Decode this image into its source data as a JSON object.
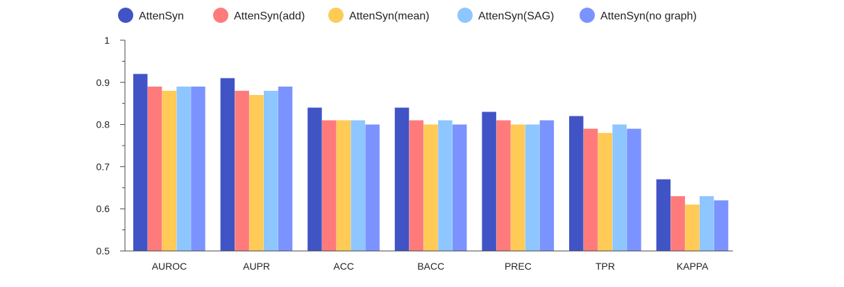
{
  "chart_data": {
    "type": "bar",
    "title": "",
    "xlabel": "",
    "ylabel": "",
    "ylim": [
      0.5,
      1.0
    ],
    "yticks": [
      "0.5",
      "0.6",
      "0.7",
      "0.8",
      "0.9",
      "1"
    ],
    "grid": false,
    "legend_position": "top",
    "categories": [
      "AUROC",
      "AUPR",
      "ACC",
      "BACC",
      "PREC",
      "TPR",
      "KAPPA"
    ],
    "series": [
      {
        "name": "AttenSyn",
        "color": "#4154C6",
        "values": [
          0.92,
          0.91,
          0.84,
          0.84,
          0.83,
          0.82,
          0.67
        ]
      },
      {
        "name": "AttenSyn(add)",
        "color": "#FF7B7B",
        "values": [
          0.89,
          0.88,
          0.81,
          0.81,
          0.81,
          0.79,
          0.63
        ]
      },
      {
        "name": "AttenSyn(mean)",
        "color": "#FFCA56",
        "values": [
          0.88,
          0.87,
          0.81,
          0.8,
          0.8,
          0.78,
          0.61
        ]
      },
      {
        "name": "AttenSyn(SAG)",
        "color": "#8EC6FF",
        "values": [
          0.89,
          0.88,
          0.81,
          0.81,
          0.8,
          0.8,
          0.63
        ]
      },
      {
        "name": "AttenSyn(no graph)",
        "color": "#7B93FF",
        "values": [
          0.89,
          0.89,
          0.8,
          0.8,
          0.81,
          0.79,
          0.62
        ]
      }
    ]
  }
}
